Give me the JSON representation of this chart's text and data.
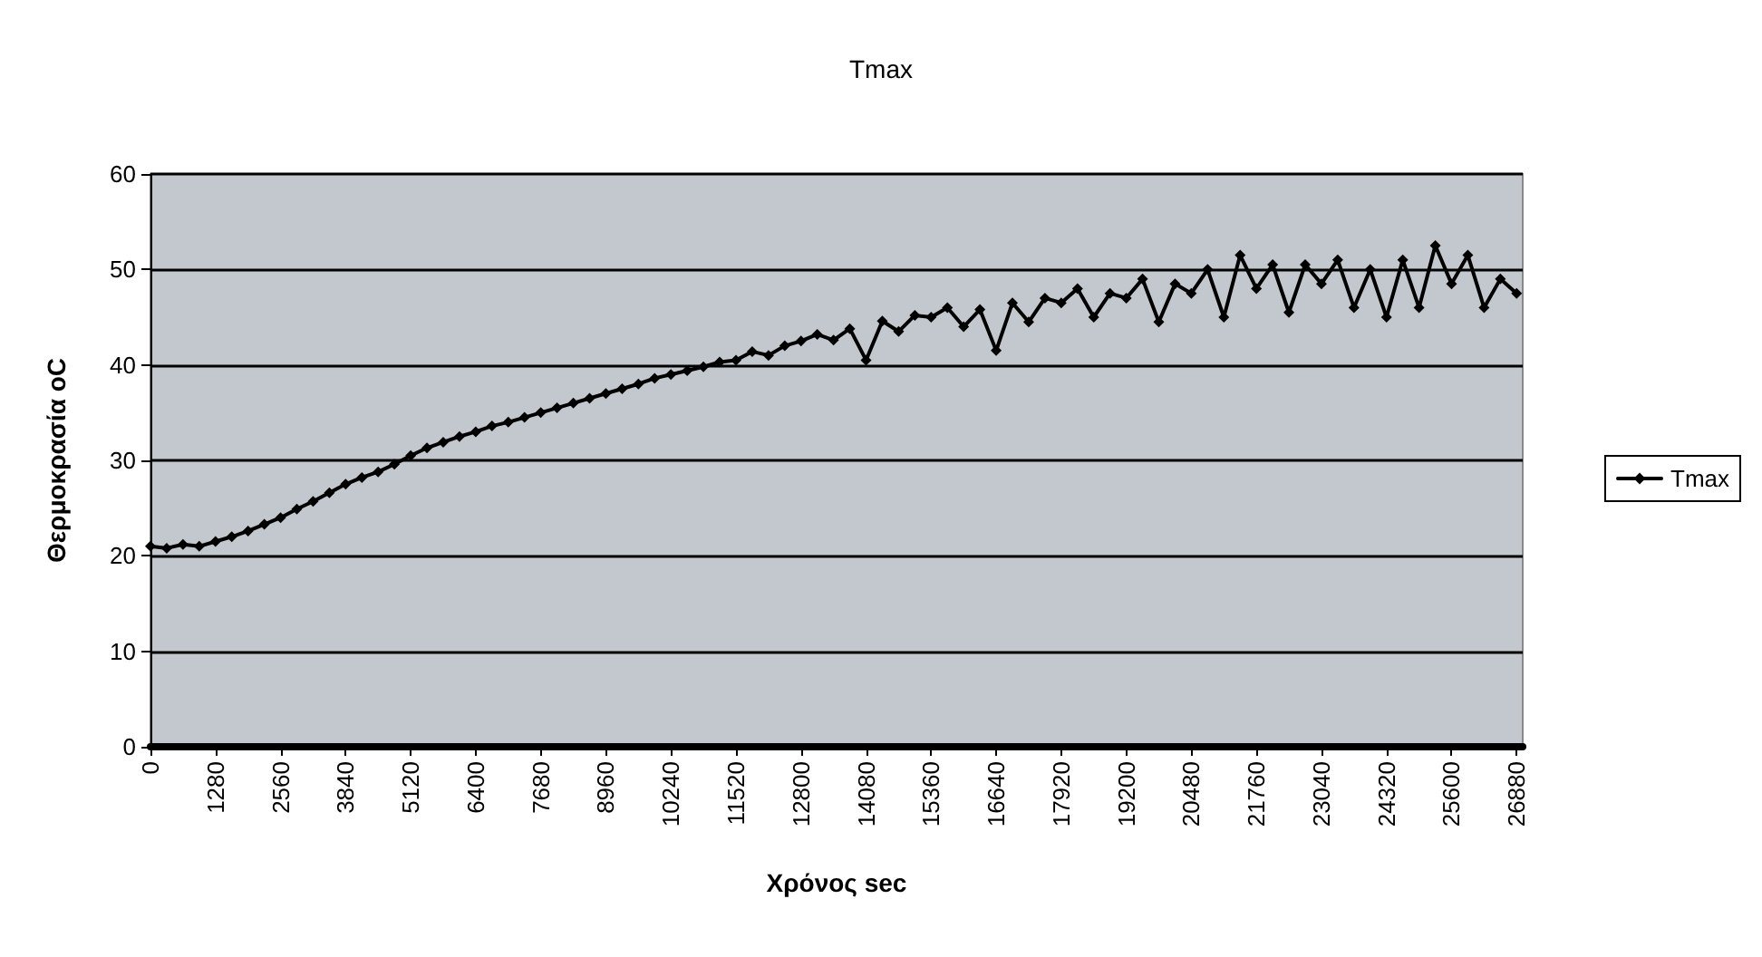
{
  "chart_data": {
    "type": "line",
    "title": "Tmax",
    "xlabel": "Χρόνος sec",
    "ylabel": "Θερμοκρασία oC",
    "x": [
      0,
      320,
      640,
      960,
      1280,
      1600,
      1920,
      2240,
      2560,
      2880,
      3200,
      3520,
      3840,
      4160,
      4480,
      4800,
      5120,
      5440,
      5760,
      6080,
      6400,
      6720,
      7040,
      7360,
      7680,
      8000,
      8320,
      8640,
      8960,
      9280,
      9600,
      9920,
      10240,
      10560,
      10880,
      11200,
      11520,
      11840,
      12160,
      12480,
      12800,
      13120,
      13440,
      13760,
      14080,
      14400,
      14720,
      15040,
      15360,
      15680,
      16000,
      16320,
      16640,
      16960,
      17280,
      17600,
      17920,
      18240,
      18560,
      18880,
      19200,
      19520,
      19840,
      20160,
      20480,
      20800,
      21120,
      21440,
      21760,
      22080,
      22400,
      22720,
      23040,
      23360,
      23680,
      24000,
      24320,
      24640,
      24960,
      25280,
      25600,
      25920,
      26240,
      26560,
      26880
    ],
    "series": [
      {
        "name": "Tmax",
        "color": "#000000",
        "values": [
          21,
          20.8,
          21.2,
          21,
          21.5,
          22,
          22.6,
          23.3,
          24,
          24.9,
          25.7,
          26.6,
          27.5,
          28.2,
          28.8,
          29.6,
          30.5,
          31.3,
          31.9,
          32.5,
          33,
          33.6,
          34,
          34.5,
          35,
          35.5,
          36,
          36.5,
          37,
          37.5,
          38,
          38.6,
          39,
          39.4,
          39.8,
          40.3,
          40.5,
          41.4,
          41,
          42,
          42.5,
          43.2,
          42.6,
          43.8,
          40.5,
          44.6,
          43.5,
          45.2,
          45,
          46,
          44,
          45.8,
          41.5,
          46.5,
          44.5,
          47,
          46.5,
          48,
          45,
          47.5,
          47,
          49,
          44.5,
          48.5,
          47.5,
          50,
          45,
          51.5,
          48,
          50.5,
          45.5,
          50.5,
          48.5,
          51,
          46,
          50,
          45,
          51,
          46,
          52.5,
          48.5,
          51.5,
          46,
          49,
          47.5
        ]
      }
    ],
    "xlim": [
      0,
      27000
    ],
    "xticks": [
      0,
      1280,
      2560,
      3840,
      5120,
      6400,
      7680,
      8960,
      10240,
      11520,
      12800,
      14080,
      15360,
      16640,
      17920,
      19200,
      20480,
      21760,
      23040,
      24320,
      25600,
      26880
    ],
    "ylim": [
      0,
      60
    ],
    "yticks": [
      0,
      10,
      20,
      30,
      40,
      50,
      60
    ],
    "grid": "y",
    "legend": "right",
    "marker": "diamond",
    "line_style": "solid"
  }
}
